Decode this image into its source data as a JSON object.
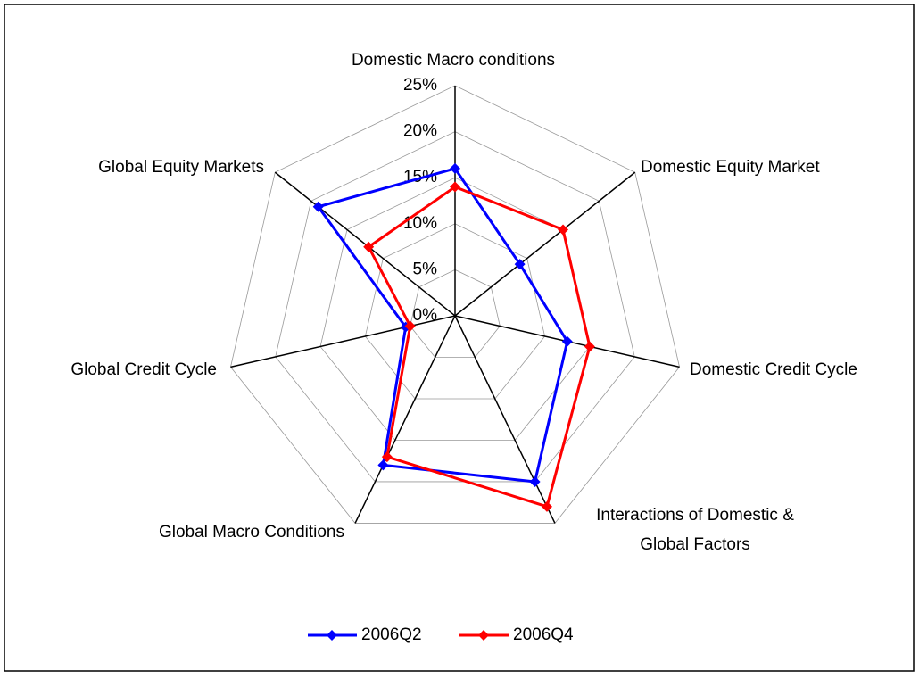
{
  "chart_data": {
    "type": "radar",
    "categories": [
      "Domestic Macro conditions",
      "Domestic Equity Market",
      "Domestic Credit Cycle",
      "Interactions of Domestic & Global Factors",
      "Global Macro Conditions",
      "Global Credit Cycle",
      "Global Equity Markets"
    ],
    "series": [
      {
        "name": "2006Q2",
        "color": "#0000ff",
        "values": [
          16,
          9,
          12.5,
          20,
          18,
          5.5,
          19
        ]
      },
      {
        "name": "2006Q4",
        "color": "#ff0000",
        "values": [
          14,
          15,
          15,
          23,
          17,
          5,
          12
        ]
      }
    ],
    "ylim": [
      0,
      25
    ],
    "yticks": [
      {
        "value": 0,
        "label": "0%"
      },
      {
        "value": 5,
        "label": "5%"
      },
      {
        "value": 10,
        "label": "10%"
      },
      {
        "value": 15,
        "label": "15%"
      },
      {
        "value": 20,
        "label": "20%"
      },
      {
        "value": 25,
        "label": "25%"
      }
    ],
    "grid": true,
    "legend": "bottom"
  }
}
